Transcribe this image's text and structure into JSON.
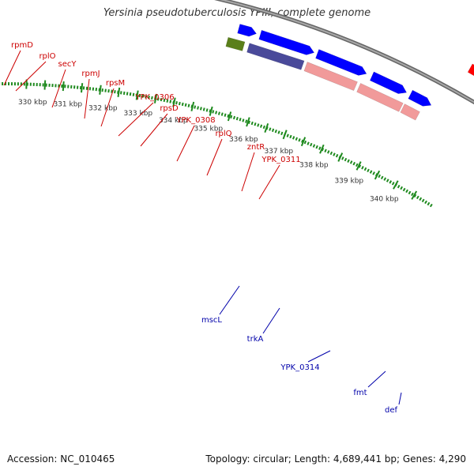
{
  "header": {
    "title": "Yersinia pseudotuberculosis YPIII, complete genome"
  },
  "footer": {
    "accession": "Accession: NC_010465",
    "summary": "Topology: circular; Length: 4,689,441 bp; Genes: 4,290"
  },
  "colors": {
    "backbone": "#8c8c8c",
    "tick": "#1f8a1f",
    "label_top": "#cc0000",
    "label_bottom": "#0000aa",
    "cds": "#ff0000",
    "gene_pink": "#f19a9a",
    "rrna_green": "#aaee44",
    "orange": "#ff9900",
    "gray": "#777777",
    "blue": "#0000ff",
    "olive": "#5a7f1a",
    "slate": "#4a4a9a",
    "magenta": "#ee1199"
  },
  "scale": {
    "unit": "kbp",
    "labels": [
      "330 kbp",
      "331 kbp",
      "332 kbp",
      "333 kbp",
      "334 kbp",
      "335 kbp",
      "336 kbp",
      "337 kbp",
      "338 kbp",
      "339 kbp",
      "340 kbp"
    ]
  },
  "genes_top": [
    {
      "name": "rpmD"
    },
    {
      "name": "rplO"
    },
    {
      "name": "secY"
    },
    {
      "name": "rpmJ"
    },
    {
      "name": "rpsM"
    },
    {
      "name": "YPK_0306"
    },
    {
      "name": "rpsD"
    },
    {
      "name": "YPK_0308"
    },
    {
      "name": "rplQ"
    },
    {
      "name": "zntR"
    },
    {
      "name": "YPK_0311"
    }
  ],
  "genes_bottom": [
    {
      "name": "mscL"
    },
    {
      "name": "trkA"
    },
    {
      "name": "YPK_0314"
    },
    {
      "name": "fmt"
    },
    {
      "name": "def"
    }
  ]
}
